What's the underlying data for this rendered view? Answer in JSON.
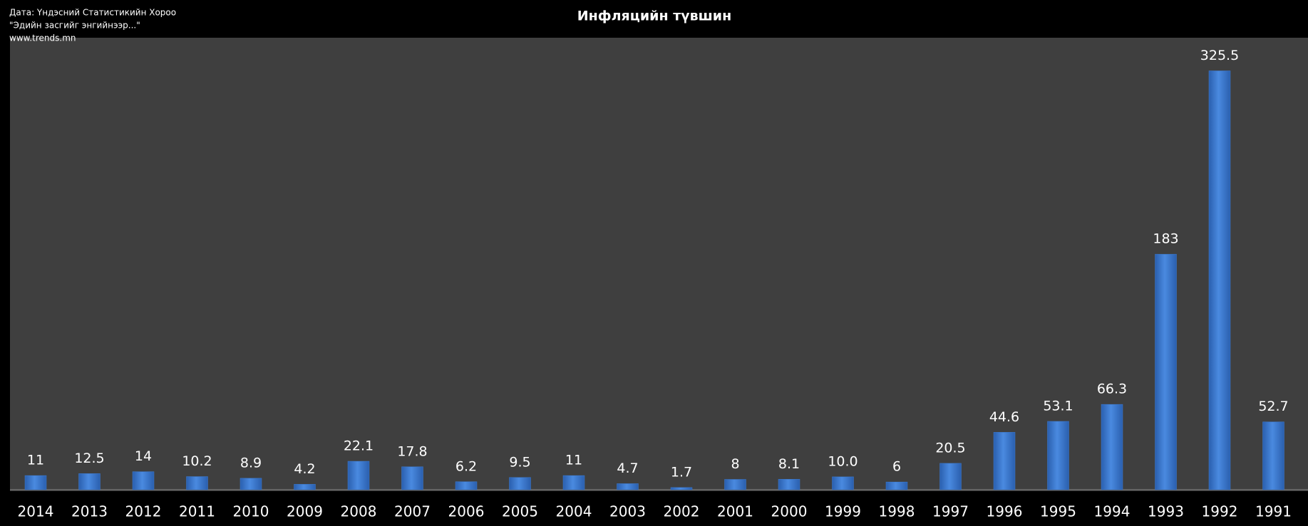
{
  "chart_data": {
    "type": "bar",
    "title": "Инфляцийн түвшин",
    "source": [
      "Дата: Үндэсний Статистикийн Хороо",
      "\"Эдийн засгийг энгийнээр...\"",
      "www.trends.mn"
    ],
    "categories": [
      "2014",
      "2013",
      "2012",
      "2011",
      "2010",
      "2009",
      "2008",
      "2007",
      "2006",
      "2005",
      "2004",
      "2003",
      "2002",
      "2001",
      "2000",
      "1999",
      "1998",
      "1997",
      "1996",
      "1995",
      "1994",
      "1993",
      "1992",
      "1991"
    ],
    "values": [
      11,
      12.5,
      14,
      10.2,
      8.9,
      4.2,
      22.1,
      17.8,
      6.2,
      9.5,
      11,
      4.7,
      1.7,
      8,
      8.1,
      10.0,
      6,
      20.5,
      44.6,
      53.1,
      66.3,
      183,
      325.5,
      52.7
    ],
    "value_labels": [
      "11",
      "12.5",
      "14",
      "10.2",
      "8.9",
      "4.2",
      "22.1",
      "17.8",
      "6.2",
      "9.5",
      "11",
      "4.7",
      "1.7",
      "8",
      "8.1",
      "10.0",
      "6",
      "20.5",
      "44.6",
      "53.1",
      "66.3",
      "183",
      "325.5",
      "52.7"
    ],
    "color": "#3c7dd6"
  }
}
